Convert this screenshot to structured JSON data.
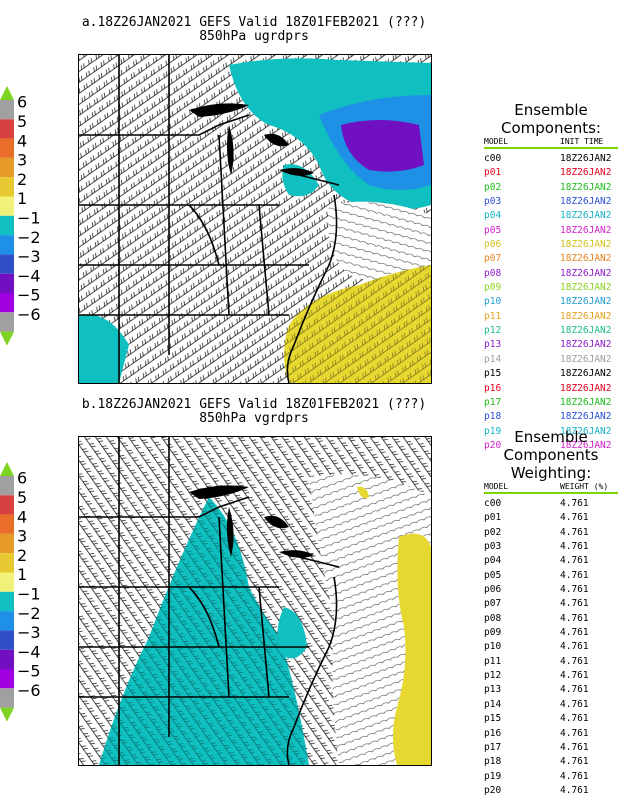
{
  "panel_a": {
    "title_line1": "a.18Z26JAN2021 GEFS Valid 18Z01FEB2021 (???)",
    "title_line2": "850hPa ugrdprs"
  },
  "panel_b": {
    "title_line1": "b.18Z26JAN2021 GEFS Valid 18Z01FEB2021 (???)",
    "title_line2": "850hPa vgrdprs"
  },
  "legend": {
    "labels": [
      "6",
      "5",
      "4",
      "3",
      "2",
      "1",
      "−1",
      "−2",
      "−3",
      "−4",
      "−5",
      "−6"
    ],
    "colors": [
      "#a0a0a0",
      "#d94040",
      "#e86e2a",
      "#e89a28",
      "#e6c830",
      "#f2f27a",
      "#10c0c0",
      "#1e90e6",
      "#3050c8",
      "#7010c0",
      "#a000e0",
      "#a0a0a0"
    ],
    "arrow_color": "#7ed320"
  },
  "components": {
    "heading_line1": "Ensemble",
    "heading_line2": "Components:",
    "col_model": "MODEL",
    "col_init": "INIT TIME",
    "rows": [
      {
        "model": "c00",
        "init": "18Z26JAN2",
        "color": "#000000"
      },
      {
        "model": "p01",
        "init": "18Z26JAN2",
        "color": "#e8001c"
      },
      {
        "model": "p02",
        "init": "18Z26JAN2",
        "color": "#1ebd1e"
      },
      {
        "model": "p03",
        "init": "18Z26JAN2",
        "color": "#2850d8"
      },
      {
        "model": "p04",
        "init": "18Z26JAN2",
        "color": "#14b4c8"
      },
      {
        "model": "p05",
        "init": "18Z26JAN2",
        "color": "#d41ecc"
      },
      {
        "model": "p06",
        "init": "18Z26JAN2",
        "color": "#d4c01e"
      },
      {
        "model": "p07",
        "init": "18Z26JAN2",
        "color": "#e8841e"
      },
      {
        "model": "p08",
        "init": "18Z26JAN2",
        "color": "#8c1ec8"
      },
      {
        "model": "p09",
        "init": "18Z26JAN2",
        "color": "#8cd21e"
      },
      {
        "model": "p10",
        "init": "18Z26JAN2",
        "color": "#1e9cd2"
      },
      {
        "model": "p11",
        "init": "18Z26JAN2",
        "color": "#e8a01e"
      },
      {
        "model": "p12",
        "init": "18Z26JAN2",
        "color": "#1ebd8c"
      },
      {
        "model": "p13",
        "init": "18Z26JAN2",
        "color": "#8c1ec8"
      },
      {
        "model": "p14",
        "init": "18Z26JAN2",
        "color": "#a0a0a0"
      },
      {
        "model": "p15",
        "init": "18Z26JAN2",
        "color": "#000000"
      },
      {
        "model": "p16",
        "init": "18Z26JAN2",
        "color": "#e8001c"
      },
      {
        "model": "p17",
        "init": "18Z26JAN2",
        "color": "#1ebd1e"
      },
      {
        "model": "p18",
        "init": "18Z26JAN2",
        "color": "#2850d8"
      },
      {
        "model": "p19",
        "init": "18Z26JAN2",
        "color": "#14b4c8"
      },
      {
        "model": "p20",
        "init": "18Z26JAN2",
        "color": "#d41ecc"
      }
    ]
  },
  "weighting": {
    "heading_line1": "Ensemble",
    "heading_line2": "Components",
    "heading_line3": "Weighting:",
    "col_model": "MODEL",
    "col_weight": "WEIGHT (%)",
    "rows": [
      {
        "model": "c00",
        "weight": "4.761"
      },
      {
        "model": "p01",
        "weight": "4.761"
      },
      {
        "model": "p02",
        "weight": "4.761"
      },
      {
        "model": "p03",
        "weight": "4.761"
      },
      {
        "model": "p04",
        "weight": "4.761"
      },
      {
        "model": "p05",
        "weight": "4.761"
      },
      {
        "model": "p06",
        "weight": "4.761"
      },
      {
        "model": "p07",
        "weight": "4.761"
      },
      {
        "model": "p08",
        "weight": "4.761"
      },
      {
        "model": "p09",
        "weight": "4.761"
      },
      {
        "model": "p10",
        "weight": "4.761"
      },
      {
        "model": "p11",
        "weight": "4.761"
      },
      {
        "model": "p12",
        "weight": "4.761"
      },
      {
        "model": "p13",
        "weight": "4.761"
      },
      {
        "model": "p14",
        "weight": "4.761"
      },
      {
        "model": "p15",
        "weight": "4.761"
      },
      {
        "model": "p16",
        "weight": "4.761"
      },
      {
        "model": "p17",
        "weight": "4.761"
      },
      {
        "model": "p18",
        "weight": "4.761"
      },
      {
        "model": "p19",
        "weight": "4.761"
      },
      {
        "model": "p20",
        "weight": "4.761"
      }
    ]
  }
}
